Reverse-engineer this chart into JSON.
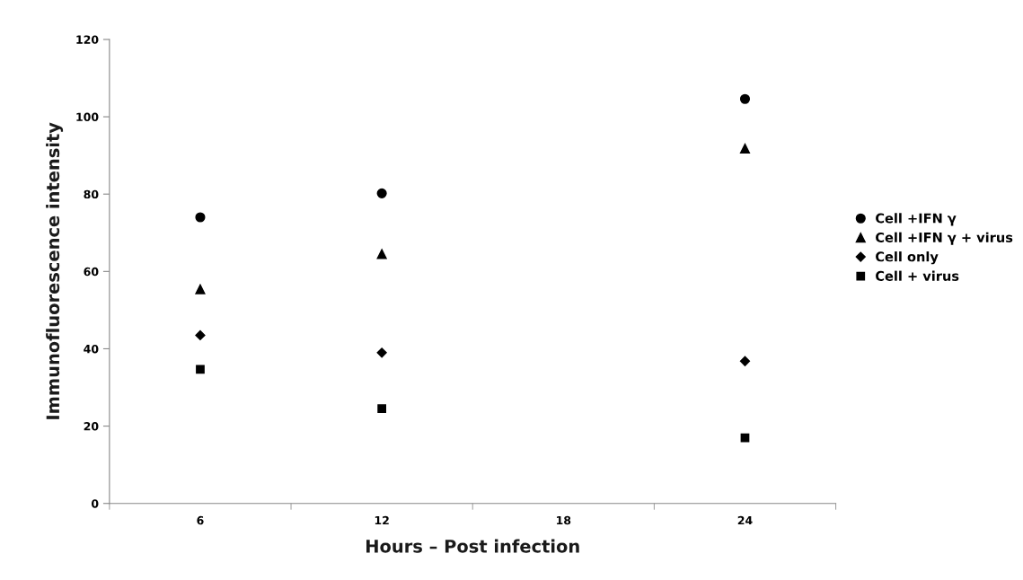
{
  "chart_data": {
    "type": "scatter",
    "xlabel": "Hours – Post infection",
    "ylabel": "Immunofluorescence intensity",
    "categories": [
      "6",
      "12",
      "18",
      "24"
    ],
    "series": [
      {
        "name": "Cell +IFN γ",
        "color": "#000000",
        "marker": "circle",
        "values": [
          74,
          80.2,
          null,
          104.6
        ]
      },
      {
        "name": "Cell +IFN γ + virus",
        "color": "#000000",
        "marker": "triangle",
        "values": [
          55.4,
          64.5,
          null,
          91.8
        ]
      },
      {
        "name": "Cell only",
        "color": "#000000",
        "marker": "diamond",
        "values": [
          43.5,
          39,
          null,
          36.8
        ]
      },
      {
        "name": "Cell + virus",
        "color": "#000000",
        "marker": "square",
        "values": [
          34.7,
          24.5,
          null,
          17
        ]
      }
    ],
    "ylim": [
      0,
      120
    ],
    "yticks": [
      0,
      20,
      40,
      60,
      80,
      100,
      120
    ],
    "grid": false,
    "legend": "right"
  }
}
